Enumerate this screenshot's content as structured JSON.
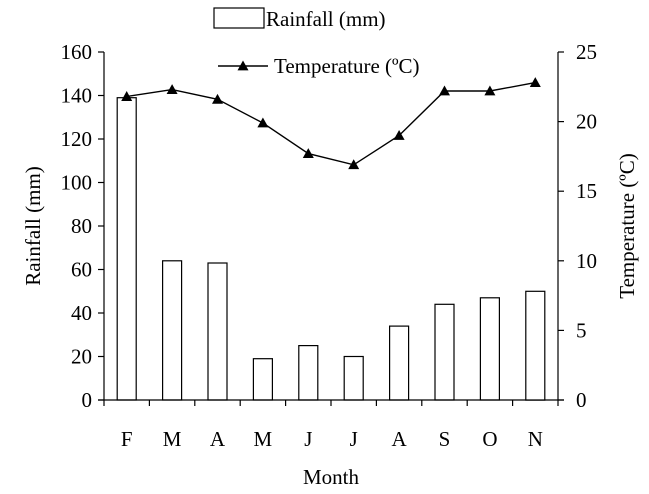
{
  "chart_data": {
    "type": "bar",
    "categories": [
      "F",
      "M",
      "A",
      "M",
      "J",
      "J",
      "A",
      "S",
      "O",
      "N"
    ],
    "series": [
      {
        "name": "Rainfall (mm)",
        "type": "bar",
        "axis": "left",
        "values": [
          139,
          64,
          63,
          19,
          25,
          20,
          34,
          44,
          47,
          50
        ]
      },
      {
        "name": "Temperature (ºC)",
        "type": "line",
        "marker": "triangle",
        "axis": "right",
        "values": [
          21.8,
          22.3,
          21.6,
          19.9,
          17.7,
          16.9,
          19.0,
          22.2,
          22.2,
          22.8
        ]
      }
    ],
    "xlabel": "Month",
    "ylabel": "Rainfall (mm)",
    "y2label": "Temperature (ºC)",
    "ylim": [
      0,
      160
    ],
    "yticks": [
      0,
      20,
      40,
      60,
      80,
      100,
      120,
      140,
      160
    ],
    "y2lim": [
      0,
      25
    ],
    "y2ticks": [
      0,
      5,
      10,
      15,
      20,
      25
    ],
    "grid": false,
    "legend_position": "top-center",
    "colors": {
      "bar_fill": "#ffffff",
      "stroke": "#000000"
    }
  }
}
